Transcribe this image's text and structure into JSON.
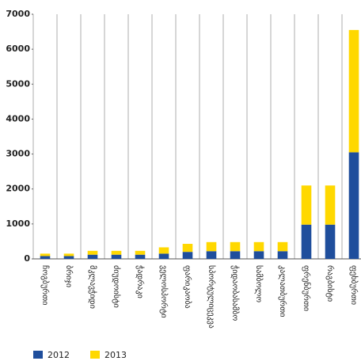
{
  "chart_data": {
    "type": "stacked_bar",
    "categories": [
      "ჩოგბურთი",
      "ბრიჯი",
      "მკლავჭიდი",
      "ძიუდოისტი",
      "ჭადრაკი",
      "ველოსპორტი",
      "ფარიკაობა",
      "სპორტულიცეკვა",
      "ჭიდაობასამბო",
      "სამბოლო",
      "კალათბურთი",
      "ფრენბურთი",
      "რაგბისტი",
      "ფეხბურთი"
    ],
    "series": [
      {
        "name": "2012",
        "color": "#1f4e9c",
        "values": [
          80,
          80,
          120,
          120,
          120,
          150,
          200,
          220,
          220,
          220,
          220,
          980,
          980,
          3050
        ]
      },
      {
        "name": "2013",
        "color": "#ffd800",
        "values": [
          70,
          70,
          110,
          110,
          110,
          180,
          230,
          260,
          260,
          260,
          260,
          1120,
          1120,
          3500
        ]
      }
    ],
    "ylim": [
      0,
      7000
    ],
    "yticks": [
      0,
      1000,
      2000,
      3000,
      4000,
      5000,
      6000,
      7000
    ],
    "grid": true
  }
}
